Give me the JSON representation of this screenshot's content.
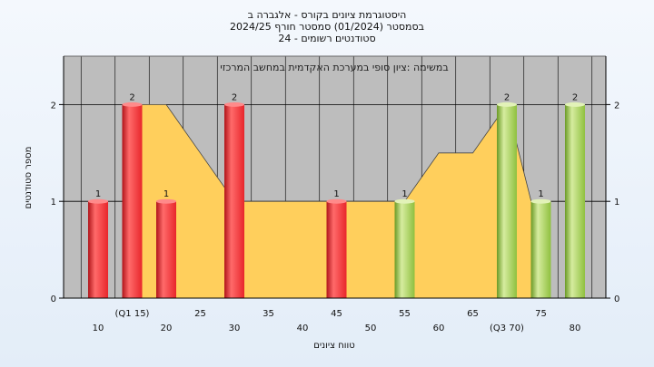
{
  "header": {
    "line1": "היסטוגרמת ציונים בקורס - אלגברה ב",
    "line2": "בסמסטר (01/2024) סמסטר חורף 2024/25",
    "line3": "סטודנטים רשומים - 24"
  },
  "colors": {
    "plot_bg": "#bdbdbd",
    "area": "#ffcf5c",
    "bar_red": "#e8262b",
    "bar_green": "#8fc03f",
    "grid": "#000000"
  },
  "chart_data": {
    "type": "bar",
    "subtitle": "במשימה :ציון סופי במערכת האקדמית במחשב המרכזי",
    "xlabel": "טווח ציונים",
    "ylabel": "מספר סטודנטים",
    "ylim": [
      0,
      2.5
    ],
    "yticks": [
      0,
      1,
      2
    ],
    "grid": true,
    "categories": [
      "10",
      "(Q1 15)",
      "20",
      "25",
      "30",
      "35",
      "40",
      "45",
      "50",
      "55",
      "60",
      "65",
      "(Q3 70)",
      "75",
      "80"
    ],
    "category_values": [
      10,
      15,
      20,
      25,
      30,
      35,
      40,
      45,
      50,
      55,
      60,
      65,
      70,
      75,
      80
    ],
    "values": [
      1,
      2,
      1,
      0,
      2,
      0,
      0,
      1,
      0,
      1,
      0,
      0,
      2,
      1,
      2
    ],
    "bar_colors": [
      "red",
      "red",
      "red",
      "red",
      "red",
      "red",
      "red",
      "red",
      "green",
      "green",
      "green",
      "green",
      "green",
      "green",
      "green"
    ],
    "area_series": {
      "x": [
        15,
        20,
        25,
        30,
        35,
        40,
        45,
        50,
        55,
        60,
        65,
        70,
        75
      ],
      "values": [
        2,
        2,
        1.5,
        1,
        1,
        1,
        1,
        1,
        1,
        1.5,
        1.5,
        2,
        0.6
      ]
    }
  }
}
